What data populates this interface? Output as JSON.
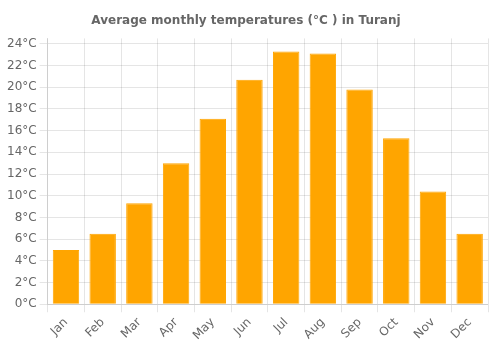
{
  "chart_data": {
    "type": "bar",
    "title": "Average monthly temperatures (°C ) in Turanj",
    "categories": [
      "Jan",
      "Feb",
      "Mar",
      "Apr",
      "May",
      "Jun",
      "Jul",
      "Aug",
      "Sep",
      "Oct",
      "Nov",
      "Dec"
    ],
    "values": [
      5.0,
      6.5,
      9.3,
      13.0,
      17.1,
      20.7,
      23.3,
      23.1,
      19.8,
      15.3,
      10.4,
      6.5
    ],
    "color": "#FFA500",
    "ylim": [
      0,
      24.5
    ],
    "yticks": [
      {
        "value": 0,
        "label": "0°C"
      },
      {
        "value": 2,
        "label": "2°C"
      },
      {
        "value": 4,
        "label": "4°C"
      },
      {
        "value": 6,
        "label": "6°C"
      },
      {
        "value": 8,
        "label": "8°C"
      },
      {
        "value": 10,
        "label": "10°C"
      },
      {
        "value": 12,
        "label": "12°C"
      },
      {
        "value": 14,
        "label": "14°C"
      },
      {
        "value": 16,
        "label": "16°C"
      },
      {
        "value": 18,
        "label": "18°C"
      },
      {
        "value": 20,
        "label": "20°C"
      },
      {
        "value": 22,
        "label": "22°C"
      },
      {
        "value": 24,
        "label": "24°C"
      }
    ],
    "grid": true
  }
}
